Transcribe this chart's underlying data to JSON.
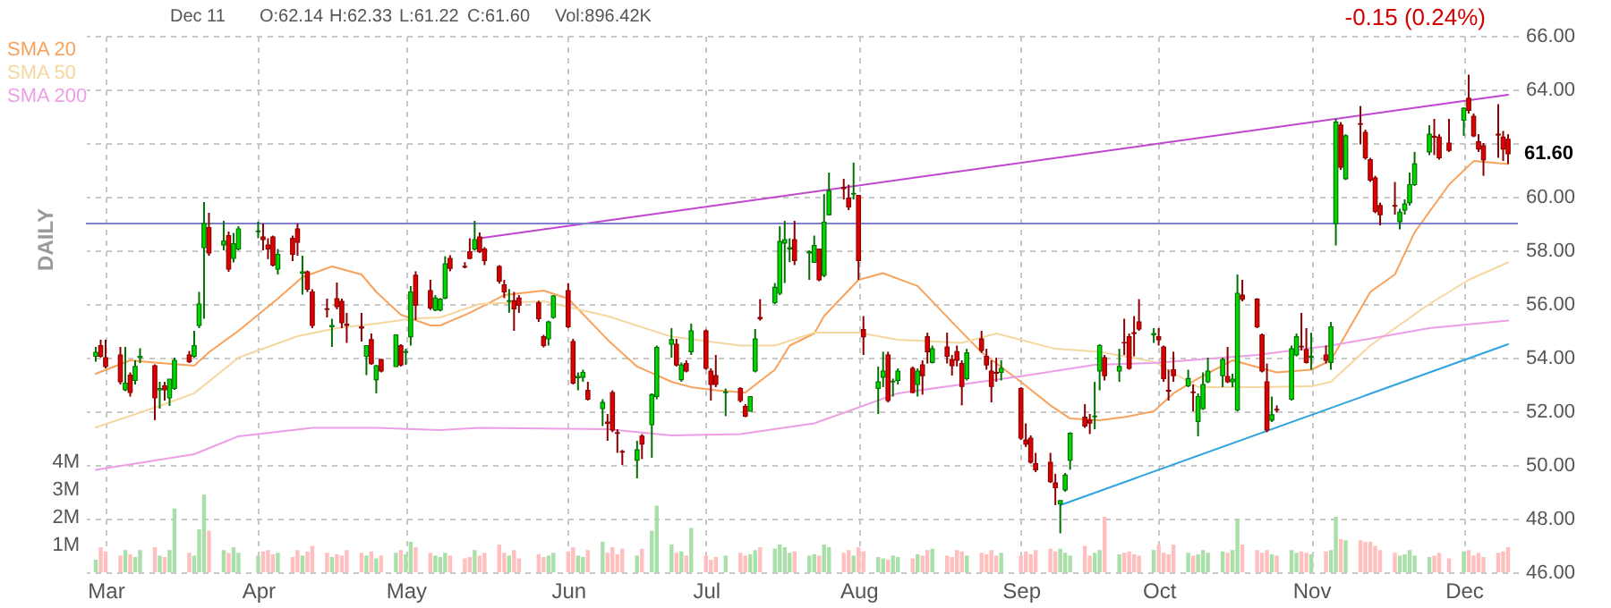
{
  "chart_data": {
    "type": "candlestick",
    "annotations": [
      "Dec 11",
      "O:62.14",
      "H:62.33",
      "L:61.22",
      "C:61.60",
      "Vol:896.42K",
      "-0.15 (0.24%)",
      "DAILY",
      {
        "text": "61.60",
        "x": "--12-11",
        "y": 61.6
      }
    ],
    "x": [
      "--02-28",
      "--02-29",
      "--03-01",
      "--03-04",
      "--03-05",
      "--03-06",
      "--03-07",
      "--03-08",
      "--03-11",
      "--03-12",
      "--03-13",
      "--03-14",
      "--03-15",
      "--03-18",
      "--03-19",
      "--03-20",
      "--03-21",
      "--03-22",
      "--03-25",
      "--03-26",
      "--03-27",
      "--03-28",
      "--04-01",
      "--04-02",
      "--04-03",
      "--04-04",
      "--04-05",
      "--04-08",
      "--04-09",
      "--04-10",
      "--04-11",
      "--04-12",
      "--04-15",
      "--04-16",
      "--04-17",
      "--04-18",
      "--04-19",
      "--04-22",
      "--04-23",
      "--04-24",
      "--04-25",
      "--04-26",
      "--04-29",
      "--04-30",
      "--05-01",
      "--05-02",
      "--05-03",
      "--05-06",
      "--05-07",
      "--05-08",
      "--05-09",
      "--05-10",
      "--05-13",
      "--05-14",
      "--05-15",
      "--05-16",
      "--05-17",
      "--05-20",
      "--05-21",
      "--05-22",
      "--05-23",
      "--05-24",
      "--05-28",
      "--05-29",
      "--05-30",
      "--05-31",
      "--06-03",
      "--06-04",
      "--06-05",
      "--06-06",
      "--06-07",
      "--06-10",
      "--06-11",
      "--06-12",
      "--06-13",
      "--06-14",
      "--06-17",
      "--06-18",
      "--06-20",
      "--06-21",
      "--06-24",
      "--06-25",
      "--06-26",
      "--06-27",
      "--06-28",
      "--07-01",
      "--07-02",
      "--07-03",
      "--07-05",
      "--07-08",
      "--07-09",
      "--07-10",
      "--07-11",
      "--07-12",
      "--07-15",
      "--07-16",
      "--07-17",
      "--07-18",
      "--07-19",
      "--07-22",
      "--07-23",
      "--07-24",
      "--07-25",
      "--07-26",
      "--07-29",
      "--07-30",
      "--07-31",
      "--08-01",
      "--08-02",
      "--08-05",
      "--08-06",
      "--08-07",
      "--08-08",
      "--08-09",
      "--08-12",
      "--08-13",
      "--08-14",
      "--08-15",
      "--08-16",
      "--08-19",
      "--08-20",
      "--08-21",
      "--08-22",
      "--08-23",
      "--08-26",
      "--08-27",
      "--08-28",
      "--08-29",
      "--08-30",
      "--09-03",
      "--09-04",
      "--09-05",
      "--09-06",
      "--09-09",
      "--09-10",
      "--09-11",
      "--09-12",
      "--09-13",
      "--09-16",
      "--09-17",
      "--09-18",
      "--09-19",
      "--09-20",
      "--09-23",
      "--09-24",
      "--09-25",
      "--09-26",
      "--09-27",
      "--09-30",
      "--10-01",
      "--10-02",
      "--10-03",
      "--10-04",
      "--10-07",
      "--10-08",
      "--10-09",
      "--10-10",
      "--10-11",
      "--10-14",
      "--10-15",
      "--10-16",
      "--10-17",
      "--10-18",
      "--10-21",
      "--10-22",
      "--10-23",
      "--10-24",
      "--10-25",
      "--10-28",
      "--10-29",
      "--10-30",
      "--10-31",
      "--11-01",
      "--11-04",
      "--11-05",
      "--11-06",
      "--11-07",
      "--11-08",
      "--11-11",
      "--11-12",
      "--11-13",
      "--11-14",
      "--11-15",
      "--11-18",
      "--11-19",
      "--11-20",
      "--11-21",
      "--11-22",
      "--11-25",
      "--11-26",
      "--11-27",
      "--11-29",
      "--12-02",
      "--12-03",
      "--12-04",
      "--12-05",
      "--12-06",
      "--12-09",
      "--12-10",
      "--12-11"
    ],
    "ohlc": [
      [
        54.05,
        54.4,
        53.85,
        54.2
      ],
      [
        54.45,
        54.67,
        54.0,
        54.05
      ],
      [
        54.0,
        54.67,
        53.6,
        53.67
      ],
      [
        54.1,
        54.4,
        53.0,
        53.1
      ],
      [
        52.8,
        54.4,
        52.75,
        53.05
      ],
      [
        53.35,
        53.45,
        52.55,
        52.7
      ],
      [
        53.15,
        53.9,
        53.0,
        53.67
      ],
      [
        54.0,
        54.35,
        53.8,
        54.05
      ],
      [
        53.7,
        53.75,
        51.67,
        52.5
      ],
      [
        52.8,
        53.1,
        52.1,
        52.85
      ],
      [
        52.95,
        53.1,
        52.4,
        52.8
      ],
      [
        52.5,
        53.2,
        52.2,
        53.2
      ],
      [
        52.85,
        54.0,
        52.8,
        53.9
      ],
      [
        54.1,
        54.25,
        53.8,
        53.85
      ],
      [
        54.05,
        55.0,
        54.0,
        54.45
      ],
      [
        55.2,
        56.45,
        55.1,
        56.0
      ],
      [
        58.1,
        59.8,
        55.45,
        59.0
      ],
      [
        58.85,
        59.4,
        57.8,
        57.9
      ],
      [
        58.2,
        59.1,
        58.0,
        58.35
      ],
      [
        58.55,
        58.7,
        57.2,
        57.3
      ],
      [
        57.7,
        58.65,
        57.55,
        58.25
      ],
      [
        58.05,
        58.9,
        58.0,
        58.8
      ],
      [
        58.7,
        59.07,
        58.45,
        58.72
      ],
      [
        58.5,
        59.0,
        58.0,
        58.4
      ],
      [
        58.2,
        58.45,
        57.67,
        58.05
      ],
      [
        58.5,
        58.55,
        57.4,
        57.45
      ],
      [
        57.3,
        58.05,
        57.1,
        57.85
      ],
      [
        58.45,
        58.55,
        57.6,
        57.85
      ],
      [
        58.8,
        59.0,
        57.8,
        58.3
      ],
      [
        57.15,
        57.8,
        56.35,
        57.2
      ],
      [
        57.2,
        57.25,
        56.45,
        56.55
      ],
      [
        56.45,
        56.55,
        55.1,
        55.2
      ],
      [
        55.82,
        56.2,
        55.5,
        55.8
      ],
      [
        55.15,
        55.45,
        54.4,
        55.2
      ],
      [
        56.2,
        56.8,
        55.8,
        55.9
      ],
      [
        56.1,
        56.2,
        55.1,
        55.3
      ],
      [
        55.25,
        55.67,
        54.55,
        55.2
      ],
      [
        55.15,
        55.67,
        54.6,
        55.1
      ],
      [
        54.05,
        54.45,
        53.35,
        54.45
      ],
      [
        54.67,
        54.9,
        53.73,
        53.78
      ],
      [
        53.18,
        53.73,
        52.67,
        53.7
      ],
      [
        53.93,
        53.95,
        53.45,
        53.5
      ],
      [
        53.67,
        54.85,
        53.67,
        54.85
      ],
      [
        54.45,
        54.5,
        53.67,
        53.73
      ],
      [
        54.2,
        54.33,
        53.73,
        54.22
      ],
      [
        54.78,
        56.67,
        54.45,
        56.45
      ],
      [
        57.07,
        57.22,
        55.4,
        55.95
      ],
      [
        56.5,
        56.9,
        55.78,
        55.85
      ],
      [
        55.78,
        56.33,
        55.73,
        56.22
      ],
      [
        55.78,
        56.22,
        55.73,
        56.18
      ],
      [
        56.22,
        57.78,
        56.18,
        57.5
      ],
      [
        57.7,
        57.82,
        57.22,
        57.33
      ],
      [
        57.4,
        57.56,
        57.33,
        57.38
      ],
      [
        57.95,
        58.45,
        57.67,
        57.7
      ],
      [
        58.05,
        59.1,
        58.0,
        58.4
      ],
      [
        58.5,
        58.67,
        57.9,
        57.95
      ],
      [
        58.05,
        58.12,
        57.45,
        57.62
      ],
      [
        57.4,
        57.45,
        56.76,
        56.85
      ],
      [
        56.71,
        56.9,
        56.22,
        56.45
      ],
      [
        56.1,
        56.56,
        55.67,
        56.12
      ],
      [
        56.12,
        56.45,
        55.0,
        55.82
      ],
      [
        56.22,
        56.33,
        55.67,
        55.95
      ],
      [
        56.05,
        56.12,
        55.33,
        55.45
      ],
      [
        54.78,
        54.85,
        54.38,
        54.45
      ],
      [
        54.7,
        55.38,
        54.45,
        55.33
      ],
      [
        55.5,
        56.33,
        55.45,
        56.3
      ],
      [
        56.5,
        56.78,
        55.1,
        55.15
      ],
      [
        54.6,
        54.7,
        53.0,
        53.05
      ],
      [
        53.25,
        53.45,
        52.78,
        53.3
      ],
      [
        53.27,
        53.55,
        53.1,
        53.45
      ],
      [
        52.78,
        53.1,
        52.4,
        52.45
      ],
      [
        52.1,
        52.45,
        51.45,
        52.33
      ],
      [
        51.6,
        51.9,
        50.9,
        51.55
      ],
      [
        52.7,
        52.78,
        51.22,
        51.3
      ],
      [
        51.2,
        51.33,
        50.45,
        51.18
      ],
      [
        50.5,
        50.56,
        50.0,
        50.48
      ],
      [
        50.18,
        50.9,
        49.5,
        50.56
      ],
      [
        51.07,
        51.15,
        50.22,
        50.78
      ],
      [
        51.5,
        52.67,
        50.27,
        52.62
      ],
      [
        52.55,
        54.45,
        52.45,
        54.38
      ],
      [
        54.5,
        55.1,
        54.0,
        54.67
      ],
      [
        54.5,
        54.7,
        53.67,
        53.73
      ],
      [
        53.18,
        53.82,
        53.1,
        53.73
      ],
      [
        53.78,
        53.9,
        53.45,
        53.5
      ],
      [
        54.22,
        55.27,
        54.1,
        55.0
      ],
      [
        55.0,
        55.05,
        53.55,
        53.6
      ],
      [
        53.5,
        53.6,
        52.4,
        53.0
      ],
      [
        53.33,
        54.1,
        52.9,
        53.0
      ],
      [
        52.7,
        52.85,
        51.82,
        52.72
      ],
      [
        52.85,
        52.9,
        52.33,
        52.4
      ],
      [
        52.18,
        52.27,
        51.78,
        51.82
      ],
      [
        52.0,
        52.55,
        52.0,
        52.55
      ],
      [
        53.5,
        55.07,
        53.45,
        54.7
      ],
      [
        55.5,
        56.18,
        55.38,
        55.45
      ],
      [
        56.05,
        56.78,
        56.0,
        56.62
      ],
      [
        56.4,
        58.9,
        56.33,
        58.33
      ],
      [
        58.27,
        59.1,
        56.78,
        58.4
      ],
      [
        58.05,
        58.45,
        57.56,
        58.1
      ],
      [
        58.4,
        59.1,
        57.45,
        57.62
      ],
      [
        57.9,
        58.0,
        56.9,
        57.95
      ],
      [
        57.55,
        58.55,
        57.55,
        58.18
      ],
      [
        58.05,
        58.05,
        56.85,
        56.9
      ],
      [
        57.07,
        60.1,
        57.0,
        59.05
      ],
      [
        59.33,
        60.9,
        59.3,
        60.22
      ],
      [
        60.35,
        60.67,
        59.9,
        60.3
      ],
      [
        59.95,
        60.45,
        59.5,
        59.62
      ],
      [
        60.1,
        61.27,
        59.9,
        60.12
      ],
      [
        60.05,
        60.05,
        56.9,
        57.62
      ],
      [
        55.05,
        55.55,
        54.1,
        54.78
      ],
      [
        52.85,
        53.67,
        51.9,
        53.1
      ],
      [
        53.27,
        54.22,
        52.9,
        53.5
      ],
      [
        54.1,
        54.22,
        52.33,
        52.4
      ],
      [
        53.1,
        53.22,
        52.55,
        53.12
      ],
      [
        53.15,
        53.6,
        53.0,
        53.5
      ],
      [
        53.6,
        53.67,
        52.67,
        52.7
      ],
      [
        53.0,
        53.6,
        52.55,
        53.5
      ],
      [
        53.73,
        53.9,
        52.62,
        53.33
      ],
      [
        54.78,
        54.93,
        53.78,
        54.22
      ],
      [
        53.82,
        54.45,
        53.78,
        54.33
      ],
      [
        54.4,
        54.93,
        53.78,
        54.05
      ],
      [
        53.93,
        54.1,
        53.33,
        53.7
      ],
      [
        54.22,
        54.45,
        53.67,
        53.9
      ],
      [
        53.78,
        53.9,
        52.22,
        52.93
      ],
      [
        53.22,
        54.33,
        53.15,
        54.18
      ],
      [
        54.7,
        55.0,
        54.18,
        54.27
      ],
      [
        54.05,
        54.33,
        53.55,
        53.73
      ],
      [
        53.5,
        53.9,
        52.33,
        52.93
      ],
      [
        53.45,
        54.0,
        53.1,
        53.42
      ],
      [
        53.45,
        53.9,
        53.15,
        53.6
      ],
      [
        52.85,
        52.9,
        50.93,
        51.0
      ],
      [
        50.93,
        51.55,
        50.67,
        50.78
      ],
      [
        51.0,
        51.1,
        50.05,
        50.1
      ],
      [
        50.05,
        50.45,
        49.73,
        49.82
      ],
      [
        50.1,
        50.45,
        49.33,
        49.38
      ],
      [
        49.33,
        49.67,
        48.5,
        49.15
      ],
      [
        48.55,
        48.67,
        47.45,
        48.67
      ],
      [
        49.07,
        49.7,
        49.0,
        49.62
      ],
      [
        50.18,
        51.22,
        49.82,
        51.18
      ],
      [
        51.78,
        52.27,
        51.38,
        51.45
      ],
      [
        51.67,
        51.9,
        51.15,
        51.56
      ],
      [
        51.8,
        53.1,
        51.33,
        51.82
      ],
      [
        53.5,
        54.5,
        52.78,
        54.45
      ],
      [
        54.0,
        54.1,
        53.15,
        53.33
      ],
      [
        53.5,
        54.33,
        53.1,
        53.67
      ],
      [
        54.56,
        55.45,
        54.1,
        54.55
      ],
      [
        54.78,
        54.9,
        53.55,
        53.6
      ],
      [
        54.93,
        55.55,
        54.05,
        54.9
      ],
      [
        55.33,
        56.18,
        55.0,
        55.07
      ],
      [
        54.85,
        55.1,
        54.55,
        54.9
      ],
      [
        54.78,
        55.1,
        54.45,
        54.67
      ],
      [
        54.4,
        54.45,
        53.1,
        53.22
      ],
      [
        52.78,
        53.55,
        52.4,
        52.75
      ],
      [
        53.55,
        54.22,
        53.1,
        53.33
      ],
      [
        52.95,
        53.55,
        52.9,
        53.22
      ],
      [
        52.72,
        53.0,
        52.0,
        52.7
      ],
      [
        51.62,
        52.67,
        51.07,
        52.55
      ],
      [
        52.1,
        53.45,
        52.05,
        53.0
      ],
      [
        53.1,
        54.0,
        53.05,
        53.5
      ],
      [
        53.33,
        54.0,
        52.9,
        53.93
      ],
      [
        53.3,
        54.4,
        53.05,
        53.1
      ],
      [
        53.1,
        53.4,
        52.9,
        53.2
      ],
      [
        52.05,
        57.1,
        52.0,
        56.4
      ],
      [
        56.33,
        56.9,
        56.1,
        56.18
      ],
      [
        56.18,
        56.22,
        55.1,
        55.15
      ],
      [
        54.85,
        54.9,
        53.45,
        53.5
      ],
      [
        53.1,
        53.78,
        51.22,
        51.3
      ],
      [
        51.67,
        52.55,
        51.6,
        51.87
      ],
      [
        52.07,
        52.22,
        51.95,
        52.05
      ],
      [
        52.45,
        54.45,
        52.4,
        54.33
      ],
      [
        54.1,
        54.9,
        54.05,
        54.78
      ],
      [
        54.42,
        55.67,
        54.27,
        54.4
      ],
      [
        54.3,
        55.1,
        53.78,
        53.82
      ],
      [
        54.02,
        54.93,
        53.55,
        54.05
      ],
      [
        54.1,
        54.45,
        53.78,
        53.9
      ],
      [
        53.82,
        55.33,
        53.55,
        55.15
      ],
      [
        59.0,
        62.9,
        58.18,
        62.78
      ],
      [
        62.67,
        62.78,
        61.0,
        61.1
      ],
      [
        60.67,
        62.33,
        60.62,
        62.27
      ],
      [
        62.72,
        63.38,
        61.95,
        62.7
      ],
      [
        62.4,
        62.5,
        61.38,
        61.45
      ],
      [
        61.38,
        61.45,
        60.55,
        60.62
      ],
      [
        60.7,
        60.78,
        59.38,
        59.45
      ],
      [
        59.67,
        59.78,
        58.93,
        59.33
      ],
      [
        59.67,
        60.55,
        59.33,
        59.65
      ],
      [
        59.07,
        59.55,
        58.78,
        59.42
      ],
      [
        59.5,
        59.9,
        59.33,
        59.73
      ],
      [
        59.78,
        60.9,
        59.67,
        60.45
      ],
      [
        60.45,
        61.67,
        60.4,
        61.22
      ],
      [
        61.67,
        62.67,
        61.55,
        62.33
      ],
      [
        62.25,
        62.9,
        61.55,
        62.22
      ],
      [
        62.22,
        62.33,
        61.38,
        61.45
      ],
      [
        62.0,
        62.9,
        61.67,
        61.73
      ],
      [
        62.85,
        63.33,
        62.27,
        63.3
      ],
      [
        63.67,
        64.55,
        63.1,
        63.22
      ],
      [
        63.0,
        63.1,
        62.22,
        62.27
      ],
      [
        62.05,
        62.33,
        61.67,
        61.78
      ],
      [
        61.9,
        62.0,
        60.78,
        61.38
      ],
      [
        62.33,
        63.45,
        61.45,
        62.3
      ],
      [
        62.22,
        62.45,
        61.33,
        61.78
      ],
      [
        62.14,
        62.33,
        61.22,
        61.6
      ]
    ],
    "series": [
      {
        "type": "bar",
        "axis": "y2",
        "colors": [
          "#a9dfa9",
          "#ffbfbf",
          "#ffbfbf",
          "#ffbfbf",
          "#a9dfa9",
          "#ffbfbf",
          "#a9dfa9",
          "#a9dfa9",
          "#ffbfbf",
          "#a9dfa9",
          "#ffbfbf",
          "#a9dfa9",
          "#a9dfa9",
          "#ffbfbf",
          "#a9dfa9",
          "#a9dfa9",
          "#a9dfa9",
          "#ffbfbf",
          "#a9dfa9",
          "#ffbfbf",
          "#a9dfa9",
          "#a9dfa9",
          "#a9dfa9",
          "#ffbfbf",
          "#ffbfbf",
          "#ffbfbf",
          "#a9dfa9",
          "#ffbfbf",
          "#ffbfbf",
          "#a9dfa9",
          "#ffbfbf",
          "#ffbfbf",
          "#ffbfbf",
          "#a9dfa9",
          "#ffbfbf",
          "#ffbfbf",
          "#ffbfbf",
          "#ffbfbf",
          "#a9dfa9",
          "#ffbfbf",
          "#a9dfa9",
          "#ffbfbf",
          "#a9dfa9",
          "#ffbfbf",
          "#a9dfa9",
          "#a9dfa9",
          "#ffbfbf",
          "#ffbfbf",
          "#a9dfa9",
          "#a9dfa9",
          "#a9dfa9",
          "#ffbfbf",
          "#ffbfbf",
          "#ffbfbf",
          "#a9dfa9",
          "#ffbfbf",
          "#ffbfbf",
          "#ffbfbf",
          "#ffbfbf",
          "#a9dfa9",
          "#ffbfbf",
          "#ffbfbf",
          "#ffbfbf",
          "#ffbfbf",
          "#a9dfa9",
          "#a9dfa9",
          "#ffbfbf",
          "#ffbfbf",
          "#a9dfa9",
          "#a9dfa9",
          "#ffbfbf",
          "#a9dfa9",
          "#ffbfbf",
          "#ffbfbf",
          "#ffbfbf",
          "#ffbfbf",
          "#a9dfa9",
          "#ffbfbf",
          "#a9dfa9",
          "#a9dfa9",
          "#a9dfa9",
          "#ffbfbf",
          "#a9dfa9",
          "#ffbfbf",
          "#a9dfa9",
          "#ffbfbf",
          "#ffbfbf",
          "#ffbfbf",
          "#a9dfa9",
          "#ffbfbf",
          "#ffbfbf",
          "#a9dfa9",
          "#a9dfa9",
          "#ffbfbf",
          "#a9dfa9",
          "#a9dfa9",
          "#a9dfa9",
          "#a9dfa9",
          "#ffbfbf",
          "#a9dfa9",
          "#a9dfa9",
          "#ffbfbf",
          "#a9dfa9",
          "#a9dfa9",
          "#ffbfbf",
          "#ffbfbf",
          "#a9dfa9",
          "#ffbfbf",
          "#ffbfbf",
          "#a9dfa9",
          "#a9dfa9",
          "#ffbfbf",
          "#a9dfa9",
          "#a9dfa9",
          "#ffbfbf",
          "#a9dfa9",
          "#ffbfbf",
          "#ffbfbf",
          "#a9dfa9",
          "#ffbfbf",
          "#ffbfbf",
          "#ffbfbf",
          "#ffbfbf",
          "#a9dfa9",
          "#ffbfbf",
          "#ffbfbf",
          "#ffbfbf",
          "#ffbfbf",
          "#a9dfa9",
          "#ffbfbf",
          "#ffbfbf",
          "#ffbfbf",
          "#ffbfbf",
          "#ffbfbf",
          "#ffbfbf",
          "#a9dfa9",
          "#a9dfa9",
          "#a9dfa9",
          "#ffbfbf",
          "#ffbfbf",
          "#a9dfa9",
          "#a9dfa9",
          "#ffbfbf",
          "#a9dfa9",
          "#ffbfbf",
          "#ffbfbf",
          "#ffbfbf",
          "#ffbfbf",
          "#a9dfa9",
          "#ffbfbf",
          "#ffbfbf",
          "#ffbfbf",
          "#ffbfbf",
          "#a9dfa9",
          "#ffbfbf",
          "#a9dfa9",
          "#a9dfa9",
          "#a9dfa9",
          "#a9dfa9",
          "#ffbfbf",
          "#a9dfa9",
          "#a9dfa9",
          "#ffbfbf",
          "#ffbfbf",
          "#ffbfbf",
          "#ffbfbf",
          "#a9dfa9",
          "#ffbfbf",
          "#a9dfa9",
          "#a9dfa9",
          "#ffbfbf",
          "#ffbfbf",
          "#a9dfa9",
          "#ffbfbf",
          "#a9dfa9",
          "#a9dfa9",
          "#ffbfbf",
          "#a9dfa9",
          "#ffbfbf",
          "#ffbfbf",
          "#ffbfbf",
          "#ffbfbf",
          "#ffbfbf",
          "#ffbfbf",
          "#a9dfa9",
          "#a9dfa9",
          "#a9dfa9",
          "#a9dfa9",
          "#a9dfa9",
          "#ffbfbf",
          "#ffbfbf",
          "#ffbfbf",
          "#a9dfa9",
          "#ffbfbf",
          "#ffbfbf",
          "#ffbfbf",
          "#ffbfbf",
          "#ffbfbf",
          "#ffbfbf",
          "#ffbfbf"
        ],
        "values": [
          0.45,
          0.9,
          0.75,
          0.6,
          0.8,
          0.65,
          0.55,
          0.8,
          0.9,
          0.6,
          0.55,
          0.8,
          2.3,
          0.7,
          0.6,
          1.55,
          2.8,
          1.5,
          0.8,
          0.7,
          0.9,
          0.7,
          0.6,
          0.75,
          0.8,
          0.65,
          0.7,
          0.55,
          0.8,
          0.6,
          0.75,
          0.95,
          0.7,
          0.55,
          0.65,
          0.6,
          0.8,
          0.7,
          0.6,
          0.75,
          0.5,
          0.6,
          0.7,
          0.8,
          0.65,
          1.1,
          0.9,
          0.7,
          0.6,
          0.55,
          0.7,
          0.6,
          0.5,
          0.55,
          0.8,
          0.6,
          0.7,
          1.0,
          0.7,
          0.6,
          0.8,
          0.5,
          0.65,
          0.55,
          0.6,
          0.7,
          0.75,
          0.9,
          0.6,
          0.55,
          0.8,
          1.1,
          0.7,
          0.9,
          0.65,
          0.85,
          0.6,
          0.85,
          1.5,
          2.4,
          1.0,
          0.7,
          0.75,
          0.6,
          1.6,
          0.6,
          0.45,
          0.55,
          0.6,
          0.7,
          0.6,
          0.65,
          0.8,
          0.9,
          0.85,
          1.0,
          0.9,
          0.7,
          0.75,
          0.6,
          0.65,
          0.6,
          1.0,
          0.9,
          0.7,
          0.8,
          0.6,
          0.9,
          0.75,
          0.55,
          0.5,
          0.45,
          0.6,
          0.55,
          0.5,
          0.65,
          0.6,
          0.8,
          0.85,
          0.6,
          0.55,
          0.8,
          0.75,
          0.6,
          0.7,
          0.65,
          0.8,
          0.6,
          0.7,
          0.6,
          0.75,
          0.65,
          0.8,
          0.85,
          0.75,
          0.85,
          0.7,
          0.6,
          0.95,
          0.6,
          0.7,
          0.8,
          2.0,
          0.65,
          0.7,
          0.75,
          0.65,
          0.6,
          0.8,
          1.0,
          0.7,
          0.65,
          1.0,
          0.7,
          0.6,
          0.65,
          0.8,
          0.7,
          0.75,
          0.7,
          0.8,
          1.9,
          1.0,
          0.8,
          0.7,
          0.8,
          0.65,
          0.6,
          0.8,
          0.7,
          0.75,
          0.7,
          0.65,
          0.75,
          0.8,
          2.0,
          1.2,
          1.15,
          1.15,
          1.1,
          1.1,
          0.95,
          0.8,
          0.7,
          0.6,
          0.65,
          0.8,
          0.6,
          0.55,
          0.6,
          0.7,
          0.5,
          0.75,
          0.8,
          0.6,
          0.7,
          0.55,
          0.7,
          0.75,
          0.9
        ]
      },
      {
        "type": "line",
        "name": "SMA 20",
        "color": "#f8a25c",
        "x": [
          "--02-28",
          "--03-06",
          "--03-12",
          "--03-19",
          "--03-22",
          "--03-28",
          "--04-05",
          "--04-10",
          "--04-16",
          "--04-22",
          "--04-25",
          "--04-30",
          "--05-06",
          "--05-08",
          "--05-14",
          "--05-21",
          "--05-29",
          "--06-03",
          "--06-11",
          "--06-17",
          "--06-24",
          "--06-28",
          "--07-03",
          "--07-09",
          "--07-15",
          "--07-18",
          "--07-23",
          "--07-25",
          "--08-01",
          "--08-06",
          "--08-13",
          "--08-20",
          "--08-26",
          "--09-03",
          "--09-09",
          "--09-13",
          "--09-19",
          "--09-24",
          "--09-30",
          "--10-04",
          "--10-09",
          "--10-16",
          "--10-25",
          "--11-01",
          "--11-05",
          "--11-13",
          "--11-18",
          "--11-22",
          "--11-29",
          "--12-04",
          "--12-11"
        ],
        "values": [
          53.4,
          53.9,
          53.8,
          53.7,
          54.2,
          55.0,
          56.2,
          57.0,
          57.4,
          57.1,
          56.45,
          55.6,
          55.2,
          55.2,
          55.67,
          56.33,
          56.5,
          56.2,
          54.67,
          53.67,
          53.1,
          52.9,
          52.78,
          52.7,
          53.55,
          54.45,
          54.9,
          55.55,
          56.9,
          57.15,
          56.67,
          55.33,
          54.2,
          53.1,
          52.22,
          51.73,
          51.67,
          51.78,
          52.0,
          52.67,
          53.22,
          53.9,
          53.45,
          53.55,
          53.9,
          56.45,
          57.1,
          58.67,
          60.45,
          61.33,
          61.22
        ]
      },
      {
        "type": "line",
        "name": "SMA 50",
        "color": "#f5d7a0",
        "x": [
          "--02-28",
          "--03-12",
          "--03-19",
          "--03-28",
          "--04-09",
          "--04-17",
          "--04-25",
          "--05-02",
          "--05-08",
          "--05-16",
          "--05-29",
          "--06-11",
          "--06-24",
          "--07-08",
          "--07-15",
          "--07-23",
          "--08-01",
          "--08-09",
          "--08-22",
          "--08-29",
          "--09-10",
          "--09-19",
          "--09-30",
          "--10-09",
          "--10-21",
          "--11-01",
          "--11-05",
          "--11-13",
          "--11-25",
          "--12-03",
          "--12-11"
        ],
        "values": [
          51.4,
          52.2,
          52.67,
          54.0,
          54.8,
          55.1,
          55.27,
          55.45,
          55.5,
          56.0,
          56.1,
          55.55,
          54.78,
          54.45,
          54.45,
          54.93,
          54.93,
          54.67,
          54.55,
          54.9,
          54.33,
          54.22,
          53.85,
          52.9,
          52.9,
          52.93,
          53.1,
          54.45,
          56.0,
          56.9,
          57.55
        ]
      },
      {
        "type": "line",
        "name": "SMA 200",
        "color": "#ec9fe6",
        "x": [
          "--02-28",
          "--03-19",
          "--03-28",
          "--04-12",
          "--04-25",
          "--05-08",
          "--05-16",
          "--06-11",
          "--06-24",
          "--07-08",
          "--07-23",
          "--08-09",
          "--09-04",
          "--09-18",
          "--09-30",
          "--10-21",
          "--11-05",
          "--11-25",
          "--12-11"
        ],
        "values": [
          49.82,
          50.4,
          51.07,
          51.38,
          51.38,
          51.3,
          51.38,
          51.33,
          51.1,
          51.15,
          51.55,
          52.67,
          53.33,
          53.73,
          53.8,
          54.1,
          54.45,
          55.1,
          55.38
        ]
      },
      {
        "type": "line",
        "color": "#c046d2",
        "x": [
          "--05-16",
          "--12-11"
        ],
        "values": [
          58.45,
          63.8
        ]
      },
      {
        "type": "line",
        "color": "#2fa3e0",
        "x": [
          "--09-11",
          "--12-11"
        ],
        "values": [
          48.5,
          54.5
        ]
      }
    ],
    "ref_lines": [
      {
        "axis": "y",
        "value": 59,
        "color": "#7f80d0"
      }
    ],
    "xlim": [
      "--02-26",
      "--12-13"
    ],
    "xticks": [
      {
        "value": "--03-01",
        "label": "Mar"
      },
      {
        "value": "--04-01",
        "label": "Apr"
      },
      {
        "value": "--05-01",
        "label": "May"
      },
      {
        "value": "--06-03",
        "label": "Jun"
      },
      {
        "value": "--07-01",
        "label": "Jul"
      },
      {
        "value": "--08-01",
        "label": "Aug"
      },
      {
        "value": "--09-03",
        "label": "Sep"
      },
      {
        "value": "--10-01",
        "label": "Oct"
      },
      {
        "value": "--11-01",
        "label": "Nov"
      },
      {
        "value": "--12-02",
        "label": "Dec"
      }
    ],
    "ylim": [
      46,
      66
    ],
    "yticks": [
      {
        "value": 46,
        "label": "46.00"
      },
      {
        "value": 48,
        "label": "48.00"
      },
      {
        "value": 50,
        "label": "50.00"
      },
      {
        "value": 52,
        "label": "52.00"
      },
      {
        "value": 54,
        "label": "54.00"
      },
      {
        "value": 56,
        "label": "56.00"
      },
      {
        "value": 58,
        "label": "58.00"
      },
      {
        "value": 60,
        "label": "60.00"
      },
      {
        "value": 62,
        "label": null
      },
      {
        "value": 64,
        "label": "64.00"
      },
      {
        "value": 66,
        "label": "66.00"
      }
    ],
    "y2lim": [
      0,
      19.35
    ],
    "y2ticks": [
      {
        "value": 1,
        "label": "1M"
      },
      {
        "value": 2,
        "label": "2M"
      },
      {
        "value": 3,
        "label": "3M"
      },
      {
        "value": 4,
        "label": "4M"
      }
    ],
    "grid": true,
    "legend": "top left"
  }
}
